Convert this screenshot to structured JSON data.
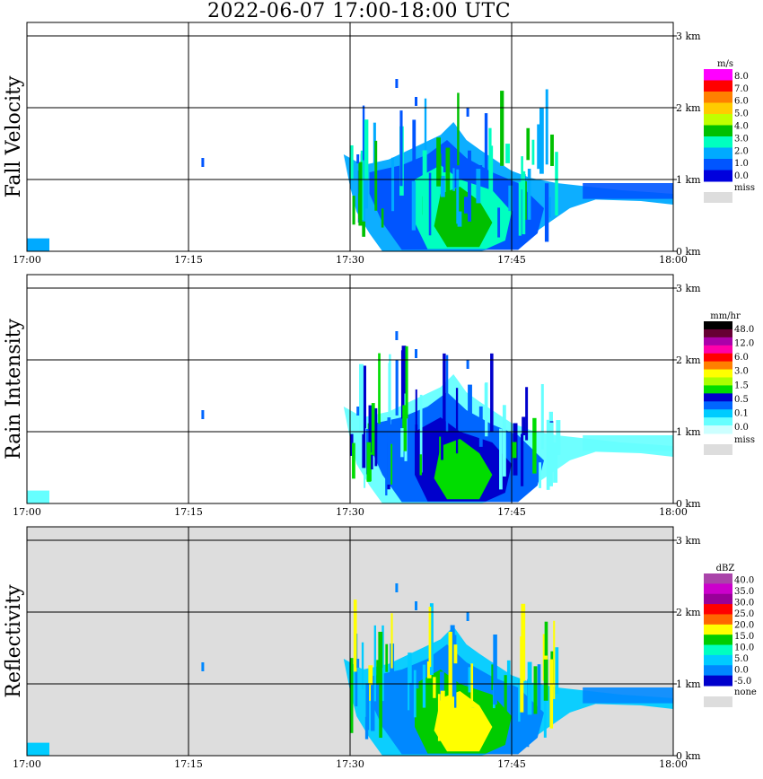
{
  "title": "2022-06-07   17:00-18:00 UTC",
  "chart_data": [
    {
      "type": "heatmap",
      "ylabel": "Fall Velocity",
      "x_ticks": [
        "17:00",
        "17:15",
        "17:30",
        "17:45",
        "18:00"
      ],
      "y_ticks": [
        "0 km",
        "1 km",
        "2 km",
        "3 km"
      ],
      "xlim": [
        "17:00",
        "18:00"
      ],
      "ylim_km": [
        0,
        3.0
      ],
      "grid": true,
      "background": "#ffffff",
      "legend": {
        "unit": "m/s",
        "labels": [
          "8.0",
          "7.0",
          "6.0",
          "5.0",
          "4.0",
          "3.0",
          "2.0",
          "1.0",
          "0.0"
        ],
        "colors": [
          "#ff00ff",
          "#ff0000",
          "#ff8000",
          "#ffcc00",
          "#c0ff00",
          "#00c000",
          "#00ffc0",
          "#00aaff",
          "#0055ff",
          "#0000dd"
        ],
        "missing_label": "miss",
        "missing_color": "#dddddd"
      }
    },
    {
      "type": "heatmap",
      "ylabel": "Rain Intensity",
      "x_ticks": [
        "17:00",
        "17:15",
        "17:30",
        "17:45",
        "18:00"
      ],
      "y_ticks": [
        "0 km",
        "1 km",
        "2 km",
        "3 km"
      ],
      "xlim": [
        "17:00",
        "18:00"
      ],
      "ylim_km": [
        0,
        3.0
      ],
      "grid": true,
      "background": "#ffffff",
      "legend": {
        "unit": "mm/hr",
        "labels": [
          "48.0",
          "12.0",
          "6.0",
          "3.0",
          "1.5",
          "0.5",
          "0.1",
          "0.0"
        ],
        "colors": [
          "#000000",
          "#660033",
          "#aa00aa",
          "#ff00aa",
          "#ff0000",
          "#ff8000",
          "#ffff00",
          "#aaff00",
          "#00dd00",
          "#0000cc",
          "#0066ff",
          "#00ccff",
          "#66ffff",
          "#ccffff"
        ],
        "missing_label": "miss",
        "missing_color": "#dddddd"
      }
    },
    {
      "type": "heatmap",
      "ylabel": "Reflectivity",
      "x_ticks": [
        "17:00",
        "17:15",
        "17:30",
        "17:45",
        "18:00"
      ],
      "y_ticks": [
        "0 km",
        "1 km",
        "2 km",
        "3 km"
      ],
      "xlim": [
        "17:00",
        "18:00"
      ],
      "ylim_km": [
        0,
        3.0
      ],
      "grid": true,
      "background": "#dddddd",
      "legend": {
        "unit": "dBZ",
        "labels": [
          "40.0",
          "35.0",
          "30.0",
          "25.0",
          "20.0",
          "15.0",
          "10.0",
          "5.0",
          "0.0",
          "-5.0"
        ],
        "colors": [
          "#aa44aa",
          "#cc00cc",
          "#990099",
          "#ff0000",
          "#ff6600",
          "#ffff00",
          "#00cc00",
          "#00ffc0",
          "#00ccff",
          "#0088ff",
          "#0000cc"
        ],
        "missing_label": "none",
        "missing_color": "#dddddd"
      }
    }
  ]
}
